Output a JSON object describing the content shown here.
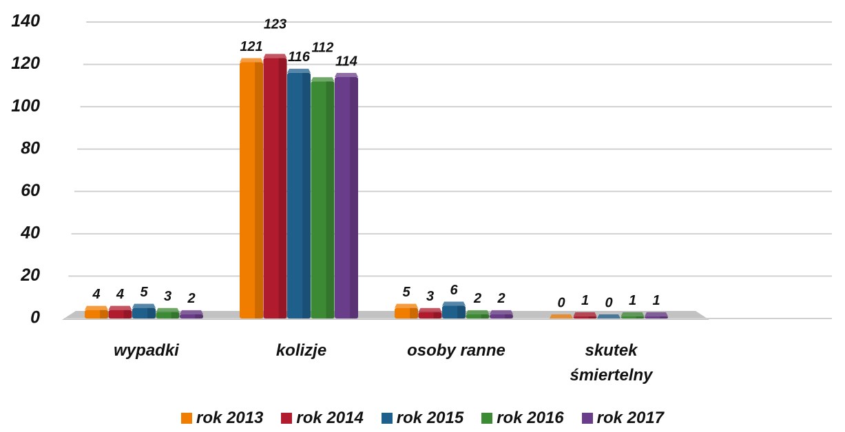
{
  "chart_data": {
    "type": "bar",
    "categories": [
      "wypadki",
      "kolizje",
      "osoby ranne",
      "skutek śmiertelny"
    ],
    "series": [
      {
        "name": "rok 2013",
        "color": "#f07c00",
        "values": [
          4,
          121,
          5,
          0
        ]
      },
      {
        "name": "rok 2014",
        "color": "#b01c2e",
        "values": [
          4,
          123,
          3,
          1
        ]
      },
      {
        "name": "rok 2015",
        "color": "#1f5f8b",
        "values": [
          5,
          116,
          6,
          0
        ]
      },
      {
        "name": "rok 2016",
        "color": "#3d8a35",
        "values": [
          3,
          112,
          2,
          1
        ]
      },
      {
        "name": "rok 2017",
        "color": "#6a3d8a",
        "values": [
          2,
          114,
          2,
          1
        ]
      }
    ],
    "ylim": [
      0,
      140
    ],
    "yticks": [
      0,
      20,
      40,
      60,
      80,
      100,
      120,
      140
    ],
    "grid": true,
    "legend": "bottom"
  }
}
